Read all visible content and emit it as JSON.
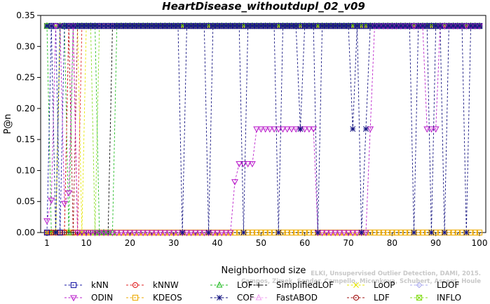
{
  "chart_data": {
    "type": "line",
    "title": "HeartDisease_withoutdupl_02_v09",
    "xlabel": "Neighborhood size",
    "ylabel": "P@n",
    "xlim": [
      1,
      100
    ],
    "ylim": [
      0,
      0.35
    ],
    "xticks": [
      1,
      10,
      20,
      30,
      40,
      50,
      60,
      70,
      80,
      90,
      100
    ],
    "yticks": [
      "0.00",
      "0.05",
      "0.10",
      "0.15",
      "0.20",
      "0.25",
      "0.30",
      "0.35"
    ],
    "grid": false,
    "legend_position": "bottom",
    "credit_lines": [
      "ELKI, Unsupervised Outlier Detection, DAMI, 2015.",
      "Campos, Zimek, Sander, Campello, Micenkova, Schubert, Assent, Houle"
    ],
    "series": [
      {
        "name": "kNN",
        "color": "#1a1aa6",
        "marker": "square",
        "points": [
          [
            1,
            0
          ],
          [
            2,
            0.333
          ],
          [
            3,
            0.333
          ],
          [
            4,
            0
          ],
          [
            5,
            0.333
          ],
          [
            100,
            0.333
          ]
        ]
      },
      {
        "name": "kNNW",
        "color": "#e02020",
        "marker": "circle",
        "points": [
          [
            1,
            0
          ],
          [
            5,
            0
          ],
          [
            6,
            0.333
          ],
          [
            7,
            0.333
          ],
          [
            8,
            0
          ],
          [
            9,
            0.333
          ],
          [
            100,
            0.333
          ]
        ]
      },
      {
        "name": "LOF",
        "color": "#22bb22",
        "marker": "triangle",
        "points": [
          [
            1,
            0.333
          ],
          [
            2,
            0
          ],
          [
            3,
            0
          ],
          [
            4,
            0.333
          ],
          [
            5,
            0.333
          ],
          [
            6,
            0
          ],
          [
            7,
            0.333
          ],
          [
            12,
            0.333
          ],
          [
            13,
            0
          ],
          [
            16,
            0
          ],
          [
            17,
            0.333
          ],
          [
            100,
            0.333
          ]
        ]
      },
      {
        "name": "SimplifiedLOF",
        "color": "#000000",
        "marker": "plus",
        "points": [
          [
            1,
            0
          ],
          [
            15,
            0
          ],
          [
            16,
            0.333
          ],
          [
            100,
            0.333
          ]
        ]
      },
      {
        "name": "LoOP",
        "color": "#e6e600",
        "marker": "x",
        "points": [
          [
            1,
            0
          ],
          [
            3,
            0
          ],
          [
            4,
            0.333
          ],
          [
            8,
            0.333
          ],
          [
            9,
            0
          ],
          [
            10,
            0.333
          ],
          [
            100,
            0.333
          ]
        ]
      },
      {
        "name": "LDOF",
        "color": "#aaaaee",
        "marker": "diamond",
        "points": [
          [
            1,
            0.333
          ],
          [
            100,
            0.333
          ]
        ]
      },
      {
        "name": "ODIN",
        "color": "#bb22cc",
        "marker": "triangle-down",
        "points": [
          [
            1,
            0.019
          ],
          [
            2,
            0.052
          ],
          [
            3,
            0.333
          ],
          [
            4,
            0.333
          ],
          [
            5,
            0.047
          ],
          [
            6,
            0.064
          ],
          [
            7,
            0.333
          ],
          [
            8,
            0
          ],
          [
            16,
            0
          ],
          [
            43,
            0
          ],
          [
            44,
            0.082
          ],
          [
            45,
            0.111
          ],
          [
            46,
            0.111
          ],
          [
            47,
            0.111
          ],
          [
            48,
            0.111
          ],
          [
            49,
            0.167
          ],
          [
            62,
            0.167
          ],
          [
            63,
            0
          ],
          [
            74,
            0
          ],
          [
            75,
            0.167
          ],
          [
            76,
            0.333
          ],
          [
            87,
            0.333
          ],
          [
            88,
            0.167
          ],
          [
            89,
            0.167
          ],
          [
            90,
            0.167
          ],
          [
            91,
            0.333
          ],
          [
            100,
            0.333
          ]
        ]
      },
      {
        "name": "KDEOS",
        "color": "#eeaa00",
        "marker": "square",
        "points": [
          [
            1,
            0
          ],
          [
            100,
            0
          ]
        ]
      },
      {
        "name": "COF",
        "color": "#141480",
        "marker": "star",
        "points": [
          [
            1,
            0.333
          ],
          [
            2,
            0.333
          ],
          [
            3,
            0
          ],
          [
            4,
            0.333
          ],
          [
            31,
            0.333
          ],
          [
            32,
            0
          ],
          [
            33,
            0.333
          ],
          [
            37,
            0.333
          ],
          [
            38,
            0
          ],
          [
            39,
            0.333
          ],
          [
            45,
            0.333
          ],
          [
            46,
            0
          ],
          [
            47,
            0.333
          ],
          [
            53,
            0.333
          ],
          [
            54,
            0
          ],
          [
            55,
            0.333
          ],
          [
            58,
            0.333
          ],
          [
            59,
            0.167
          ],
          [
            60,
            0.333
          ],
          [
            62,
            0.333
          ],
          [
            63,
            0
          ],
          [
            64,
            0.333
          ],
          [
            70,
            0.333
          ],
          [
            71,
            0.167
          ],
          [
            72,
            0.333
          ],
          [
            73,
            0
          ],
          [
            74,
            0.167
          ],
          [
            75,
            0.333
          ],
          [
            84,
            0.333
          ],
          [
            85,
            0
          ],
          [
            86,
            0.333
          ],
          [
            88,
            0.333
          ],
          [
            89,
            0
          ],
          [
            90,
            0.333
          ],
          [
            91,
            0.333
          ],
          [
            92,
            0
          ],
          [
            93,
            0.333
          ],
          [
            96,
            0.333
          ],
          [
            97,
            0
          ],
          [
            98,
            0.333
          ],
          [
            100,
            0.333
          ]
        ]
      },
      {
        "name": "FastABOD",
        "color": "#f0a0f0",
        "marker": "triangle",
        "points": [
          [
            1,
            0.333
          ],
          [
            100,
            0.333
          ]
        ]
      },
      {
        "name": "LDF",
        "color": "#a01010",
        "marker": "circle",
        "points": [
          [
            1,
            0
          ],
          [
            5,
            0
          ],
          [
            6,
            0.333
          ],
          [
            7,
            0
          ],
          [
            8,
            0.333
          ],
          [
            100,
            0.333
          ]
        ]
      },
      {
        "name": "INFLO",
        "color": "#88dd22",
        "marker": "square-x",
        "points": [
          [
            1,
            0.333
          ],
          [
            11,
            0.333
          ],
          [
            12,
            0
          ],
          [
            13,
            0.333
          ],
          [
            100,
            0.333
          ]
        ]
      }
    ]
  }
}
